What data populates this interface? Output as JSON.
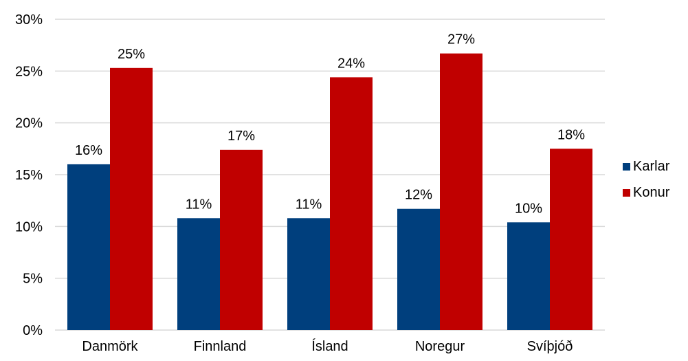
{
  "chart_data": {
    "type": "bar",
    "categories": [
      "Danmörk",
      "Finnland",
      "Ísland",
      "Noregur",
      "Svíþjóð"
    ],
    "series": [
      {
        "name": "Karlar",
        "values": [
          16,
          10.8,
          10.8,
          11.7,
          10.4
        ],
        "labels": [
          "16%",
          "11%",
          "11%",
          "12%",
          "10%"
        ],
        "color": "#003f7d"
      },
      {
        "name": "Konur",
        "values": [
          25.3,
          17.4,
          24.4,
          26.7,
          17.5
        ],
        "labels": [
          "25%",
          "17%",
          "24%",
          "27%",
          "18%"
        ],
        "color": "#c00000"
      }
    ],
    "ylim": [
      0,
      30
    ],
    "yticks": [
      "0%",
      "5%",
      "10%",
      "15%",
      "20%",
      "25%",
      "30%"
    ],
    "ytick_values": [
      0,
      5,
      10,
      15,
      20,
      25,
      30
    ],
    "grid": true,
    "legend": "right",
    "gridline_color": "#d9d9d9",
    "text_color": "#000000"
  }
}
